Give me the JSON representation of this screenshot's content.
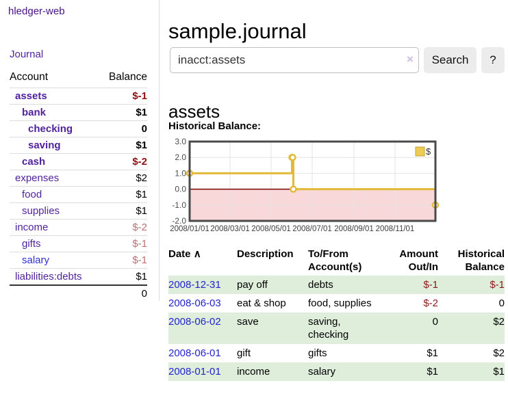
{
  "sidebar": {
    "brand": "hledger-web",
    "journal_link": "Journal",
    "accounts": {
      "header_account": "Account",
      "header_balance": "Balance",
      "rows": [
        {
          "name": "assets",
          "balance": "$-1"
        },
        {
          "name": "bank",
          "balance": "$1"
        },
        {
          "name": "checking",
          "balance": "0"
        },
        {
          "name": "saving",
          "balance": "$1"
        },
        {
          "name": "cash",
          "balance": "$-2"
        },
        {
          "name": "expenses",
          "balance": "$2"
        },
        {
          "name": "food",
          "balance": "$1"
        },
        {
          "name": "supplies",
          "balance": "$1"
        },
        {
          "name": "income",
          "balance": "$-2"
        },
        {
          "name": "gifts",
          "balance": "$-1"
        },
        {
          "name": "salary",
          "balance": "$-1"
        },
        {
          "name": "liabilities:debts",
          "balance": "$1"
        }
      ],
      "total": "0"
    }
  },
  "main": {
    "title": "sample.journal",
    "search": {
      "value": "inacct:assets",
      "clear": "×",
      "submit": "Search",
      "help": "?"
    },
    "heading": "assets",
    "chart_label": "Historical Balance:",
    "table": {
      "headers": {
        "date": "Date",
        "sort_icon": "∧",
        "description": "Description",
        "accounts": "To/From Account(s)",
        "amount": "Amount Out/In",
        "balance": "Historical Balance"
      },
      "rows": [
        {
          "date": "2008-12-31",
          "description": "pay off",
          "accounts": "debts",
          "amount": "$-1",
          "balance": "$-1"
        },
        {
          "date": "2008-06-03",
          "description": "eat & shop",
          "accounts": "food, supplies",
          "amount": "$-2",
          "balance": "0"
        },
        {
          "date": "2008-06-02",
          "description": "save",
          "accounts": "saving, checking",
          "amount": "0",
          "balance": "$2"
        },
        {
          "date": "2008-06-01",
          "description": "gift",
          "accounts": "gifts",
          "amount": "$1",
          "balance": "$2"
        },
        {
          "date": "2008-01-01",
          "description": "income",
          "accounts": "salary",
          "amount": "$1",
          "balance": "$1"
        }
      ]
    }
  },
  "chart_data": {
    "type": "line",
    "step": true,
    "title": "Historical Balance:",
    "series": [
      {
        "name": "$",
        "dates": [
          "2008-01-01",
          "2008-06-01",
          "2008-06-02",
          "2008-06-03",
          "2008-12-31"
        ],
        "values": [
          1,
          2,
          2,
          0,
          -1
        ]
      }
    ],
    "x_ticks": [
      {
        "date": "2008-01-01",
        "label": "2008/01/01"
      },
      {
        "date": "2008-03-01",
        "label": "2008/03/01"
      },
      {
        "date": "2008-05-01",
        "label": "2008/05/01"
      },
      {
        "date": "2008-07-01",
        "label": "2008/07/01"
      },
      {
        "date": "2008-09-01",
        "label": "2008/09/01"
      },
      {
        "date": "2008-11-01",
        "label": "2008/11/01"
      }
    ],
    "y_ticks": [
      3,
      2,
      1,
      0,
      -1,
      -2
    ],
    "ylim": [
      -2,
      3
    ],
    "xlim": [
      "2008-01-01",
      "2008-12-31"
    ],
    "legend": {
      "label": "$",
      "position": "top-right"
    },
    "grid": true,
    "colors": {
      "line": "#e3ba37",
      "marker_fill": "#ffffff",
      "negative_region": "#f8d8d8",
      "zero_line": "#7d0000",
      "grid": "#e3e3e3",
      "border": "#4a4a4a",
      "legend_fill": "#eecb55",
      "legend_border": "#c7a12e"
    }
  }
}
